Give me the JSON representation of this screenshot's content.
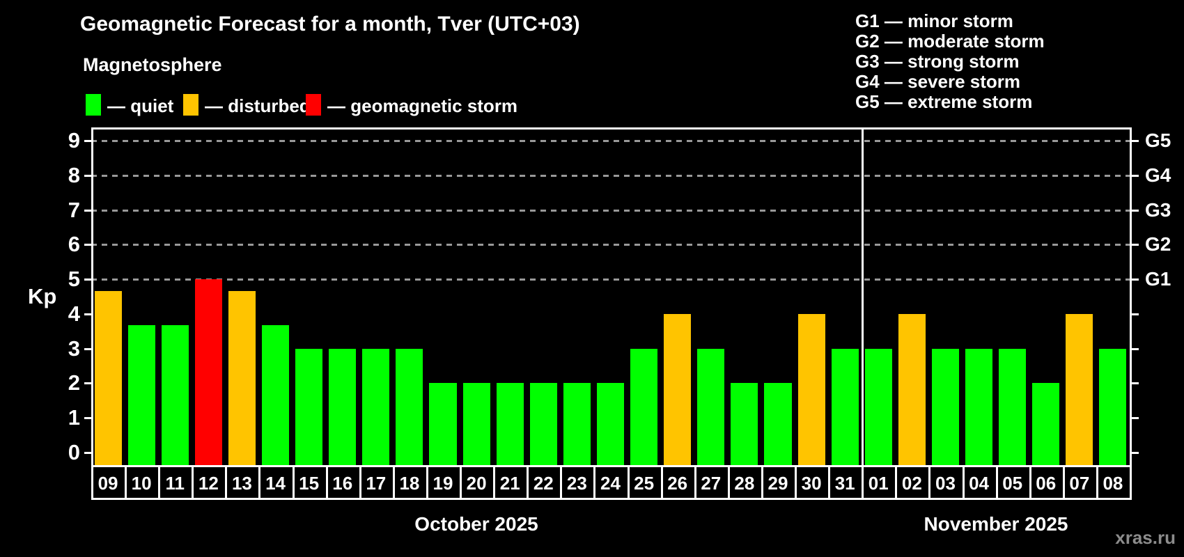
{
  "title": "Geomagnetic Forecast for a month, Tver (UTC+03)",
  "subtitle": "Magnetosphere",
  "legend": {
    "quiet_label": "— quiet",
    "disturbed_label": "— disturbed",
    "storm_label": "— geomagnetic storm"
  },
  "g_legend": {
    "g1": "G1 — minor storm",
    "g2": "G2 — moderate storm",
    "g3": "G3 — strong storm",
    "g4": "G4 — severe storm",
    "g5": "G5 — extreme storm"
  },
  "watermark": "xras.ru",
  "colors": {
    "quiet": "#00ff00",
    "disturbed": "#ffc400",
    "storm": "#ff0000",
    "grid": "#999999",
    "axis": "#ffffff",
    "watermark": "#8c8c8c"
  },
  "chart_data": {
    "type": "bar",
    "title": "Geomagnetic Forecast for a month, Tver (UTC+03)",
    "ylabel": "Kp",
    "ylim": [
      0,
      9
    ],
    "y_ticks": [
      0,
      1,
      2,
      3,
      4,
      5,
      6,
      7,
      8,
      9
    ],
    "gridlines_at_kp": [
      5,
      6,
      7,
      8,
      9
    ],
    "right_axis_labels": [
      {
        "kp": 5,
        "label": "G1"
      },
      {
        "kp": 6,
        "label": "G2"
      },
      {
        "kp": 7,
        "label": "G3"
      },
      {
        "kp": 8,
        "label": "G4"
      },
      {
        "kp": 9,
        "label": "G5"
      }
    ],
    "legend_position": "top",
    "grid": "horizontal-dashed",
    "months": [
      {
        "label": "October 2025",
        "days": 23
      },
      {
        "label": "November 2025",
        "days": 8
      }
    ],
    "categories": [
      "09",
      "10",
      "11",
      "12",
      "13",
      "14",
      "15",
      "16",
      "17",
      "18",
      "19",
      "20",
      "21",
      "22",
      "23",
      "24",
      "25",
      "26",
      "27",
      "28",
      "29",
      "30",
      "31",
      "01",
      "02",
      "03",
      "04",
      "05",
      "06",
      "07",
      "08"
    ],
    "values": [
      4.67,
      3.67,
      3.67,
      5.0,
      4.67,
      3.67,
      3.0,
      3.0,
      3.0,
      3.0,
      2.0,
      2.0,
      2.0,
      2.0,
      2.0,
      2.0,
      3.0,
      4.0,
      3.0,
      2.0,
      2.0,
      4.0,
      3.0,
      3.0,
      4.0,
      3.0,
      3.0,
      3.0,
      2.0,
      4.0,
      3.0
    ],
    "statuses": [
      "disturbed",
      "quiet",
      "quiet",
      "storm",
      "disturbed",
      "quiet",
      "quiet",
      "quiet",
      "quiet",
      "quiet",
      "quiet",
      "quiet",
      "quiet",
      "quiet",
      "quiet",
      "quiet",
      "quiet",
      "disturbed",
      "quiet",
      "quiet",
      "quiet",
      "disturbed",
      "quiet",
      "quiet",
      "disturbed",
      "quiet",
      "quiet",
      "quiet",
      "quiet",
      "disturbed",
      "quiet"
    ]
  }
}
